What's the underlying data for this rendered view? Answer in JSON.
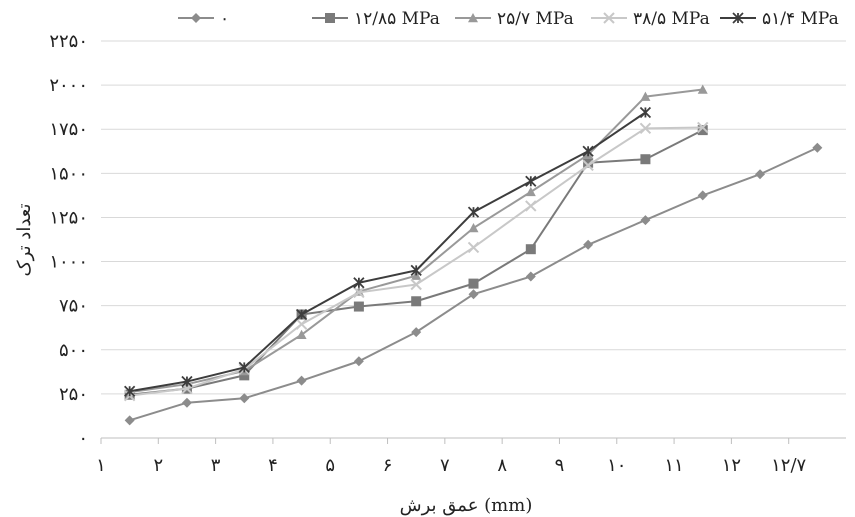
{
  "chart_data": {
    "type": "line",
    "title": "",
    "xlabel": "عمق برش (mm)",
    "ylabel": "تعداد ترک",
    "x_categories": [
      "۱",
      "۲",
      "۳",
      "۴",
      "۵",
      "۶",
      "۷",
      "۸",
      "۹",
      "۱۰",
      "۱۱",
      "۱۲",
      "۱۲/۷"
    ],
    "y_ticks": [
      {
        "value": 0,
        "label": "۰"
      },
      {
        "value": 250,
        "label": "۲۵۰"
      },
      {
        "value": 500,
        "label": "۵۰۰"
      },
      {
        "value": 750,
        "label": "۷۵۰"
      },
      {
        "value": 1000,
        "label": "۱۰۰۰"
      },
      {
        "value": 1250,
        "label": "۱۲۵۰"
      },
      {
        "value": 1500,
        "label": "۱۵۰۰"
      },
      {
        "value": 1750,
        "label": "۱۷۵۰"
      },
      {
        "value": 2000,
        "label": "۲۰۰۰"
      },
      {
        "value": 2250,
        "label": "۲۲۵۰"
      }
    ],
    "ylim": [
      0,
      2250
    ],
    "grid": "horizontal",
    "legend_position": "top",
    "series": [
      {
        "name": "۰",
        "color": "#8c8c8c",
        "marker": "diamond",
        "x": [
          1.5,
          2.5,
          3.5,
          4.5,
          5.5,
          6.5,
          7.5,
          8.5,
          9.5,
          10.5,
          11.5,
          12.5,
          13.5
        ],
        "values": [
          100,
          200,
          225,
          325,
          435,
          600,
          815,
          915,
          1095,
          1235,
          1375,
          1495,
          1645
        ]
      },
      {
        "name": "۱۲/۸۵ MPa",
        "color": "#7a7a7a",
        "marker": "square",
        "x": [
          1.5,
          2.5,
          3.5,
          4.5,
          5.5,
          6.5,
          7.5,
          8.5,
          9.5,
          10.5,
          11.5
        ],
        "values": [
          245,
          280,
          355,
          700,
          745,
          775,
          875,
          1070,
          1560,
          1580,
          1745
        ]
      },
      {
        "name": "۲۵/۷ MPa",
        "color": "#999999",
        "marker": "triangle",
        "x": [
          1.5,
          2.5,
          3.5,
          4.5,
          5.5,
          6.5,
          7.5,
          8.5,
          9.5,
          10.5,
          11.5
        ],
        "values": [
          260,
          305,
          380,
          585,
          830,
          920,
          1190,
          1395,
          1605,
          1935,
          1975
        ]
      },
      {
        "name": "۳۸/۵ MPa",
        "color": "#c8c8c8",
        "marker": "x",
        "x": [
          1.5,
          2.5,
          3.5,
          4.5,
          5.5,
          6.5,
          7.5,
          8.5,
          9.5,
          10.5,
          11.5
        ],
        "values": [
          240,
          280,
          390,
          645,
          825,
          870,
          1080,
          1315,
          1545,
          1755,
          1760
        ]
      },
      {
        "name": "۵۱/۴ MPa",
        "color": "#3d3d3d",
        "marker": "star",
        "x": [
          1.5,
          2.5,
          3.5,
          4.5,
          5.5,
          6.5,
          7.5,
          8.5,
          9.5,
          10.5
        ],
        "values": [
          265,
          320,
          400,
          700,
          880,
          950,
          1280,
          1455,
          1625,
          1845
        ]
      }
    ]
  }
}
